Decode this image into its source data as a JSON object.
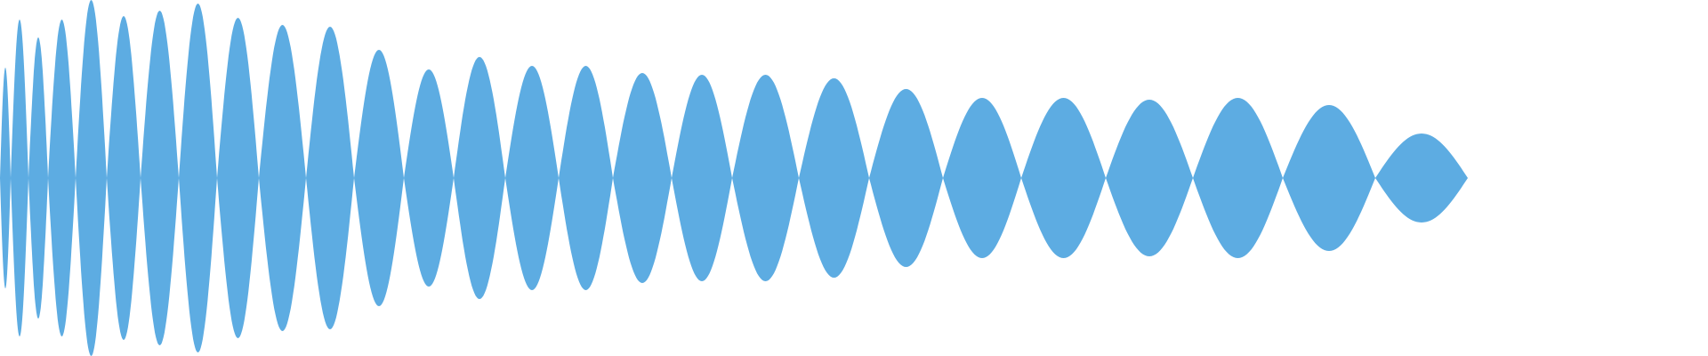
{
  "waveform": {
    "fill_color": "#5dace2",
    "background_color": "#ffffff",
    "lobes": [
      {
        "peak": 0.62
      },
      {
        "peak": 0.89
      },
      {
        "peak": 0.79
      },
      {
        "peak": 0.89
      },
      {
        "peak": 1.0
      },
      {
        "peak": 0.91
      },
      {
        "peak": 0.94
      },
      {
        "peak": 0.98
      },
      {
        "peak": 0.9
      },
      {
        "peak": 0.86
      },
      {
        "peak": 0.85
      },
      {
        "peak": 0.72
      },
      {
        "peak": 0.61
      },
      {
        "peak": 0.68
      },
      {
        "peak": 0.63
      },
      {
        "peak": 0.63
      },
      {
        "peak": 0.59
      },
      {
        "peak": 0.58
      },
      {
        "peak": 0.58
      },
      {
        "peak": 0.56
      },
      {
        "peak": 0.5
      },
      {
        "peak": 0.45
      },
      {
        "peak": 0.45
      },
      {
        "peak": 0.44
      },
      {
        "peak": 0.45
      },
      {
        "peak": 0.41
      },
      {
        "peak": 0.25
      }
    ]
  }
}
